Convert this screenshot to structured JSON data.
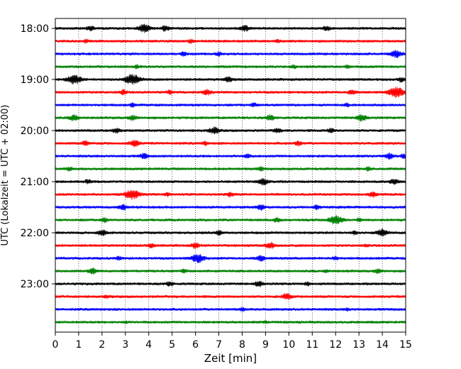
{
  "chart_data": {
    "type": "line",
    "title": "",
    "xlabel": "Zeit  [min]",
    "ylabel": "UTC (Lokalzeit = UTC + 02:00)",
    "xlim": [
      0,
      15
    ],
    "x_ticks": [
      "0",
      "1",
      "2",
      "3",
      "4",
      "5",
      "6",
      "7",
      "8",
      "9",
      "10",
      "11",
      "12",
      "13",
      "14",
      "15"
    ],
    "y_ticks": [
      "18:00",
      "19:00",
      "20:00",
      "21:00",
      "22:00",
      "23:00"
    ],
    "grid": "vertical-dotted",
    "rows_per_hour": 4,
    "minutes_per_row": 15,
    "trace_colors": [
      "#000000",
      "#ff0000",
      "#0000ff",
      "#008000"
    ],
    "series": [
      {
        "start": "18:00",
        "events": [
          [
            3.8,
            0.7
          ],
          [
            1.5,
            0.4
          ],
          [
            4.7,
            0.45
          ],
          [
            8.1,
            0.5
          ],
          [
            11.6,
            0.4
          ]
        ]
      },
      {
        "start": "18:15",
        "events": [
          [
            1.3,
            0.25
          ],
          [
            5.8,
            0.3
          ],
          [
            9.5,
            0.25
          ]
        ]
      },
      {
        "start": "18:30",
        "events": [
          [
            5.5,
            0.35
          ],
          [
            7.0,
            0.3
          ],
          [
            14.6,
            0.6
          ]
        ]
      },
      {
        "start": "18:45",
        "events": [
          [
            3.5,
            0.3
          ],
          [
            10.2,
            0.3
          ],
          [
            12.5,
            0.25
          ]
        ]
      },
      {
        "start": "19:00",
        "events": [
          [
            0.8,
            0.8
          ],
          [
            3.3,
            0.9
          ],
          [
            7.4,
            0.45
          ],
          [
            14.8,
            0.35
          ]
        ]
      },
      {
        "start": "19:15",
        "events": [
          [
            2.9,
            0.4
          ],
          [
            4.9,
            0.3
          ],
          [
            6.5,
            0.45
          ],
          [
            12.7,
            0.4
          ],
          [
            14.6,
            0.9
          ]
        ]
      },
      {
        "start": "19:30",
        "events": [
          [
            3.3,
            0.3
          ],
          [
            8.5,
            0.3
          ],
          [
            12.5,
            0.25
          ]
        ]
      },
      {
        "start": "19:45",
        "events": [
          [
            0.8,
            0.5
          ],
          [
            3.3,
            0.45
          ],
          [
            9.2,
            0.45
          ],
          [
            13.1,
            0.55
          ]
        ]
      },
      {
        "start": "20:00",
        "events": [
          [
            2.6,
            0.4
          ],
          [
            6.8,
            0.55
          ],
          [
            9.5,
            0.4
          ],
          [
            11.8,
            0.35
          ]
        ]
      },
      {
        "start": "20:15",
        "events": [
          [
            1.3,
            0.4
          ],
          [
            3.4,
            0.55
          ],
          [
            6.4,
            0.3
          ],
          [
            10.4,
            0.4
          ]
        ]
      },
      {
        "start": "20:30",
        "events": [
          [
            3.8,
            0.45
          ],
          [
            8.2,
            0.35
          ],
          [
            14.3,
            0.45
          ],
          [
            14.9,
            0.3
          ]
        ]
      },
      {
        "start": "20:45",
        "events": [
          [
            0.6,
            0.3
          ],
          [
            8.8,
            0.35
          ],
          [
            13.4,
            0.3
          ]
        ]
      },
      {
        "start": "21:00",
        "events": [
          [
            1.4,
            0.35
          ],
          [
            8.9,
            0.55
          ],
          [
            14.5,
            0.45
          ]
        ]
      },
      {
        "start": "21:15",
        "events": [
          [
            3.3,
            0.85
          ],
          [
            4.8,
            0.3
          ],
          [
            7.5,
            0.35
          ],
          [
            13.6,
            0.45
          ]
        ]
      },
      {
        "start": "21:30",
        "events": [
          [
            2.9,
            0.45
          ],
          [
            8.8,
            0.45
          ],
          [
            11.2,
            0.35
          ]
        ]
      },
      {
        "start": "21:45",
        "events": [
          [
            2.1,
            0.35
          ],
          [
            9.5,
            0.35
          ],
          [
            12.0,
            0.75
          ],
          [
            13.0,
            0.3
          ]
        ]
      },
      {
        "start": "22:00",
        "events": [
          [
            2.0,
            0.5
          ],
          [
            7.0,
            0.35
          ],
          [
            14.0,
            0.6
          ],
          [
            12.8,
            0.3
          ]
        ]
      },
      {
        "start": "22:15",
        "events": [
          [
            4.1,
            0.35
          ],
          [
            6.0,
            0.45
          ],
          [
            9.2,
            0.5
          ],
          [
            13.3,
            0.25
          ]
        ]
      },
      {
        "start": "22:30",
        "events": [
          [
            2.7,
            0.3
          ],
          [
            6.1,
            0.75
          ],
          [
            8.8,
            0.45
          ],
          [
            12.0,
            0.3
          ]
        ]
      },
      {
        "start": "22:45",
        "events": [
          [
            1.6,
            0.45
          ],
          [
            5.5,
            0.3
          ],
          [
            11.6,
            0.25
          ],
          [
            13.8,
            0.4
          ]
        ]
      },
      {
        "start": "23:00",
        "events": [
          [
            4.9,
            0.35
          ],
          [
            8.7,
            0.45
          ],
          [
            10.8,
            0.3
          ]
        ]
      },
      {
        "start": "23:15",
        "events": [
          [
            2.2,
            0.25
          ],
          [
            9.9,
            0.5
          ]
        ]
      },
      {
        "start": "23:30",
        "events": [
          [
            8.0,
            0.3
          ],
          [
            12.5,
            0.2
          ]
        ]
      },
      {
        "start": "23:45",
        "events": [
          [
            3.0,
            0.2
          ],
          [
            9.0,
            0.2
          ]
        ]
      }
    ]
  }
}
